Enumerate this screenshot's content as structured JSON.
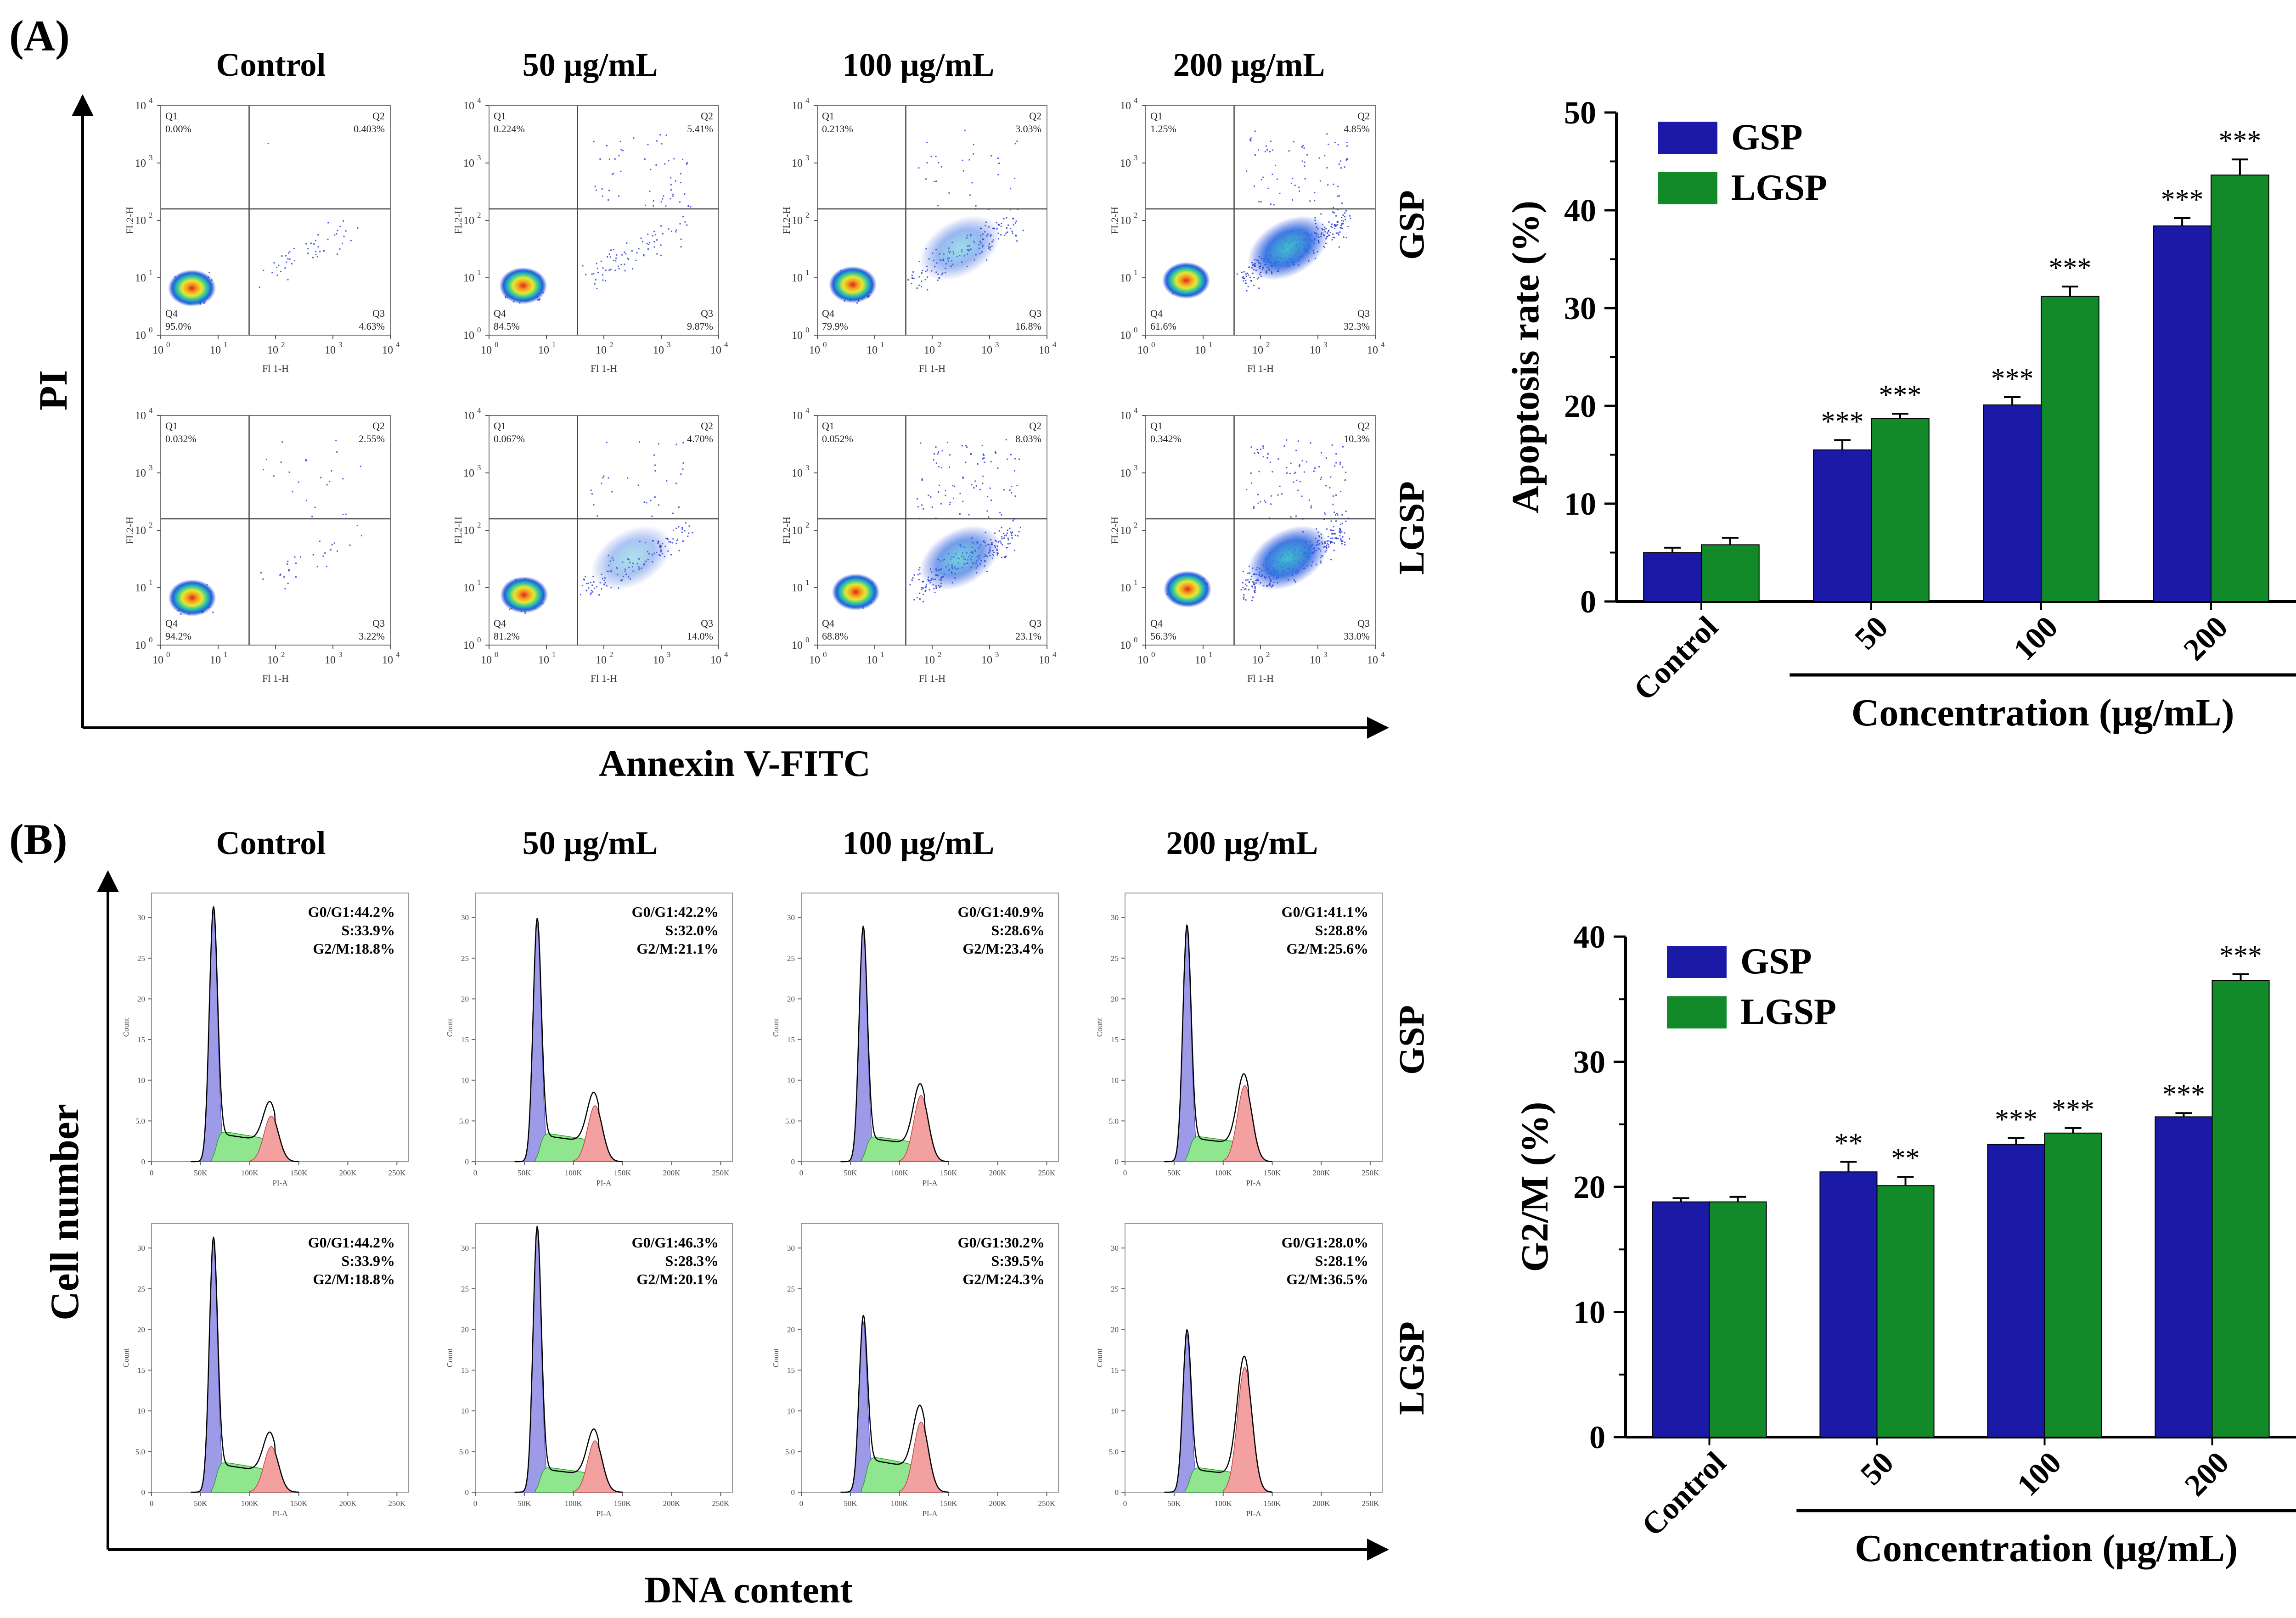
{
  "figure": {
    "panel_a_label": "(A)",
    "panel_b_label": "(B)",
    "column_titles": [
      "Control",
      "50 μg/mL",
      "100 μg/mL",
      "200 μg/mL"
    ],
    "row_labels": [
      "GSP",
      "LGSP"
    ]
  },
  "flow_panel": {
    "y_axis_title": "PI",
    "x_axis_title": "Annexin V-FITC",
    "plot_y_label": "FL2-H",
    "plot_x_label": "Fl 1-H",
    "quadrant_names": [
      "Q1",
      "Q2",
      "Q3",
      "Q4"
    ],
    "tick_labels": [
      "10",
      "10",
      "10",
      "10",
      "10"
    ],
    "tick_exponents": [
      "0",
      "1",
      "2",
      "3",
      "4"
    ],
    "plots": [
      {
        "group": "GSP",
        "conc": "Control",
        "q1": "0.00%",
        "q2": "0.403%",
        "q3": "4.63%",
        "q4": "95.0%"
      },
      {
        "group": "GSP",
        "conc": "50 μg/mL",
        "q1": "0.224%",
        "q2": "5.41%",
        "q3": "9.87%",
        "q4": "84.5%"
      },
      {
        "group": "GSP",
        "conc": "100 μg/mL",
        "q1": "0.213%",
        "q2": "3.03%",
        "q3": "16.8%",
        "q4": "79.9%"
      },
      {
        "group": "GSP",
        "conc": "200 μg/mL",
        "q1": "1.25%",
        "q2": "4.85%",
        "q3": "32.3%",
        "q4": "61.6%"
      },
      {
        "group": "LGSP",
        "conc": "Control",
        "q1": "0.032%",
        "q2": "2.55%",
        "q3": "3.22%",
        "q4": "94.2%"
      },
      {
        "group": "LGSP",
        "conc": "50 μg/mL",
        "q1": "0.067%",
        "q2": "4.70%",
        "q3": "14.0%",
        "q4": "81.2%"
      },
      {
        "group": "LGSP",
        "conc": "100 μg/mL",
        "q1": "0.052%",
        "q2": "8.03%",
        "q3": "23.1%",
        "q4": "68.8%"
      },
      {
        "group": "LGSP",
        "conc": "200 μg/mL",
        "q1": "0.342%",
        "q2": "10.3%",
        "q3": "33.0%",
        "q4": "56.3%"
      }
    ]
  },
  "cell_cycle_panel": {
    "y_axis_title": "Cell number",
    "x_axis_title": "DNA content",
    "plot_y_label": "Count",
    "plot_x_label": "PI-A",
    "x_ticks": [
      "0",
      "50K",
      "100K",
      "150K",
      "200K",
      "250K"
    ],
    "y_ticks": [
      "0",
      "5.0",
      "10",
      "15",
      "20",
      "25",
      "30"
    ],
    "plots": [
      {
        "group": "GSP",
        "conc": "Control",
        "g0g1": "G0/G1:44.2%",
        "s": "S:33.9%",
        "g2m": "G2/M:18.8%",
        "g0g1_value": 44.2,
        "s_value": 33.9,
        "g2m_value": 18.8
      },
      {
        "group": "GSP",
        "conc": "50 μg/mL",
        "g0g1": "G0/G1:42.2%",
        "s": "S:32.0%",
        "g2m": "G2/M:21.1%",
        "g0g1_value": 42.2,
        "s_value": 32.0,
        "g2m_value": 21.1
      },
      {
        "group": "GSP",
        "conc": "100 μg/mL",
        "g0g1": "G0/G1:40.9%",
        "s": "S:28.6%",
        "g2m": "G2/M:23.4%",
        "g0g1_value": 40.9,
        "s_value": 28.6,
        "g2m_value": 23.4
      },
      {
        "group": "GSP",
        "conc": "200 μg/mL",
        "g0g1": "G0/G1:41.1%",
        "s": "S:28.8%",
        "g2m": "G2/M:25.6%",
        "g0g1_value": 41.1,
        "s_value": 28.8,
        "g2m_value": 25.6
      },
      {
        "group": "LGSP",
        "conc": "Control",
        "g0g1": "G0/G1:44.2%",
        "s": "S:33.9%",
        "g2m": "G2/M:18.8%",
        "g0g1_value": 44.2,
        "s_value": 33.9,
        "g2m_value": 18.8
      },
      {
        "group": "LGSP",
        "conc": "50 μg/mL",
        "g0g1": "G0/G1:46.3%",
        "s": "S:28.3%",
        "g2m": "G2/M:20.1%",
        "g0g1_value": 46.3,
        "s_value": 28.3,
        "g2m_value": 20.1
      },
      {
        "group": "LGSP",
        "conc": "100 μg/mL",
        "g0g1": "G0/G1:30.2%",
        "s": "S:39.5%",
        "g2m": "G2/M:24.3%",
        "g0g1_value": 30.2,
        "s_value": 39.5,
        "g2m_value": 24.3
      },
      {
        "group": "LGSP",
        "conc": "200 μg/mL",
        "g0g1": "G0/G1:28.0%",
        "s": "S:28.1%",
        "g2m": "G2/M:36.5%",
        "g0g1_value": 28.0,
        "s_value": 28.1,
        "g2m_value": 36.5
      }
    ]
  },
  "colors": {
    "gsp": "#1a1aa6",
    "lgsp": "#138a2a",
    "g1_fill": "#9d9be8",
    "s_fill": "#8fe68f",
    "g2_fill": "#f2a0a0"
  },
  "chart_data": [
    {
      "type": "bar",
      "id": "apoptosis",
      "title": "",
      "categories": [
        "Control",
        "50",
        "100",
        "200"
      ],
      "series": [
        {
          "name": "GSP",
          "values": [
            5.0,
            15.5,
            20.1,
            38.4
          ],
          "errors": [
            0.5,
            1.0,
            0.8,
            0.8
          ],
          "significance": [
            "",
            "***",
            "***",
            "***"
          ]
        },
        {
          "name": "LGSP",
          "values": [
            5.8,
            18.7,
            31.2,
            43.6
          ],
          "errors": [
            0.7,
            0.5,
            1.0,
            1.6
          ],
          "significance": [
            "",
            "***",
            "***",
            "***"
          ]
        }
      ],
      "xlabel": "Concentration (μg/mL)",
      "ylabel": "Apoptosis rate (%)",
      "ylim": [
        0,
        50
      ],
      "yticks": [
        "0",
        "10",
        "20",
        "30",
        "40",
        "50"
      ],
      "legend": "top-left"
    },
    {
      "type": "bar",
      "id": "g2m",
      "title": "",
      "categories": [
        "Control",
        "50",
        "100",
        "200"
      ],
      "series": [
        {
          "name": "GSP",
          "values": [
            18.8,
            21.2,
            23.4,
            25.6
          ],
          "errors": [
            0.3,
            0.8,
            0.5,
            0.3
          ],
          "significance": [
            "",
            "**",
            "***",
            "***"
          ]
        },
        {
          "name": "LGSP",
          "values": [
            18.8,
            20.1,
            24.3,
            36.5
          ],
          "errors": [
            0.4,
            0.7,
            0.4,
            0.5
          ],
          "significance": [
            "",
            "**",
            "***",
            "***"
          ]
        }
      ],
      "xlabel": "Concentration (μg/mL)",
      "ylabel": "G2/M (%)",
      "ylim": [
        0,
        40
      ],
      "yticks": [
        "0",
        "10",
        "20",
        "30",
        "40"
      ],
      "legend": "top-left"
    }
  ]
}
